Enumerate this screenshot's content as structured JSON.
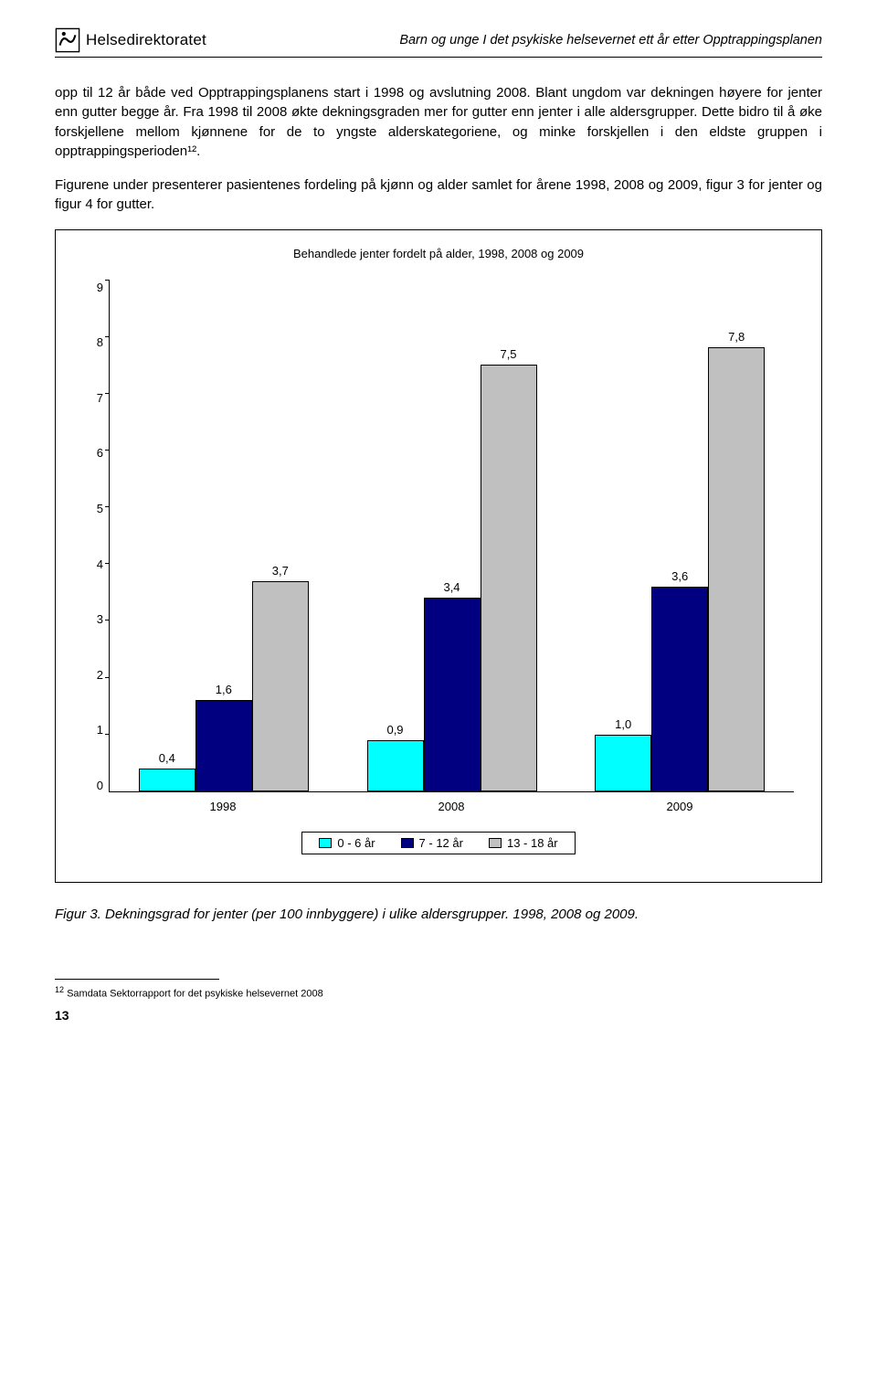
{
  "header": {
    "logo_text": "Helsedirektoratet",
    "subtitle": "Barn og unge I det psykiske helsevernet ett år etter Opptrappingsplanen"
  },
  "paragraphs": {
    "p1": "opp til 12 år både ved Opptrappingsplanens start i 1998 og avslutning 2008. Blant ungdom var dekningen høyere for jenter enn gutter begge år. Fra 1998 til 2008 økte dekningsgraden mer for gutter enn jenter i alle aldersgrupper. Dette bidro til å øke forskjellene mellom kjønnene for de to yngste alderskategoriene, og minke forskjellen i den eldste gruppen i opptrappingsperioden¹².",
    "p2": "Figurene under presenterer pasientenes fordeling på kjønn og alder samlet for årene 1998, 2008 og 2009, figur 3 for jenter og figur 4 for gutter."
  },
  "chart": {
    "title": "Behandlede jenter fordelt på alder, 1998, 2008 og 2009",
    "y_max": 9,
    "y_ticks": [
      9,
      8,
      7,
      6,
      5,
      4,
      3,
      2,
      1,
      0
    ],
    "categories": [
      "1998",
      "2008",
      "2009"
    ],
    "series": [
      {
        "name": "0 - 6 år",
        "color": "#00ffff"
      },
      {
        "name": "7 - 12 år",
        "color": "#000080"
      },
      {
        "name": "13 - 18 år",
        "color": "#c0c0c0"
      }
    ],
    "data": [
      {
        "cat": "1998",
        "values": [
          {
            "v": 0.4,
            "label": "0,4"
          },
          {
            "v": 1.6,
            "label": "1,6"
          },
          {
            "v": 3.7,
            "label": "3,7"
          }
        ]
      },
      {
        "cat": "2008",
        "values": [
          {
            "v": 0.9,
            "label": "0,9"
          },
          {
            "v": 3.4,
            "label": "3,4"
          },
          {
            "v": 7.5,
            "label": "7,5"
          }
        ]
      },
      {
        "cat": "2009",
        "values": [
          {
            "v": 1.0,
            "label": "1,0"
          },
          {
            "v": 3.6,
            "label": "3,6"
          },
          {
            "v": 7.8,
            "label": "7,8"
          }
        ]
      }
    ],
    "value_label_fontsize": 13,
    "bar_border_color": "#000000",
    "background_color": "#ffffff"
  },
  "caption": "Figur 3. Dekningsgrad for jenter (per 100 innbyggere) i ulike aldersgrupper. 1998, 2008 og 2009.",
  "footnote": {
    "num": "12",
    "text": " Samdata Sektorrapport for det psykiske helsevernet 2008"
  },
  "page_number": "13"
}
